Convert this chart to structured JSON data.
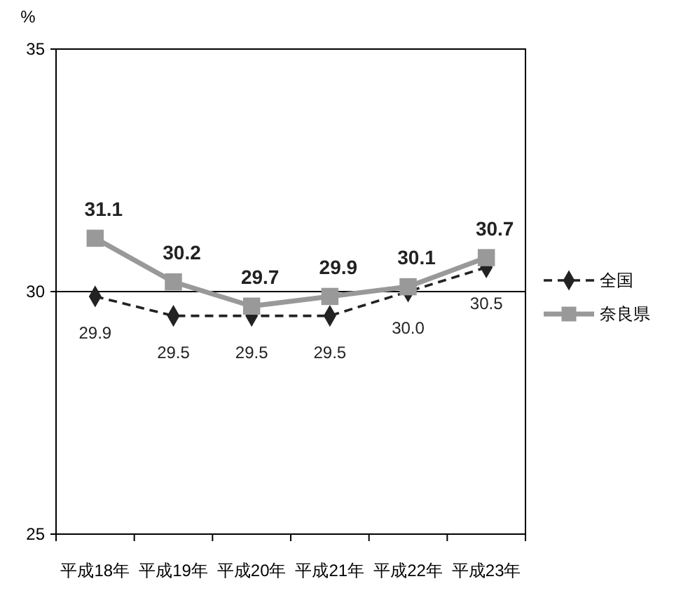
{
  "chart_data": {
    "type": "line",
    "ylabel": "%",
    "categories": [
      "平成18年",
      "平成19年",
      "平成20年",
      "平成21年",
      "平成22年",
      "平成23年"
    ],
    "series": [
      {
        "name": "全国",
        "color": "#222222",
        "values": [
          29.9,
          29.5,
          29.5,
          29.5,
          30.0,
          30.5
        ],
        "value_labels": [
          "29.9",
          "29.5",
          "29.5",
          "29.5",
          "30.0",
          "30.5"
        ],
        "marker": "diamond",
        "line_style": "dashed"
      },
      {
        "name": "奈良県",
        "color": "#999999",
        "values": [
          31.1,
          30.2,
          29.7,
          29.9,
          30.1,
          30.7
        ],
        "value_labels": [
          "31.1",
          "30.2",
          "29.7",
          "29.9",
          "30.1",
          "30.7"
        ],
        "marker": "square",
        "line_style": "solid"
      }
    ],
    "ylim": [
      25,
      35
    ],
    "yticks": [
      25,
      30,
      35
    ],
    "grid": "y",
    "legend": "right"
  }
}
